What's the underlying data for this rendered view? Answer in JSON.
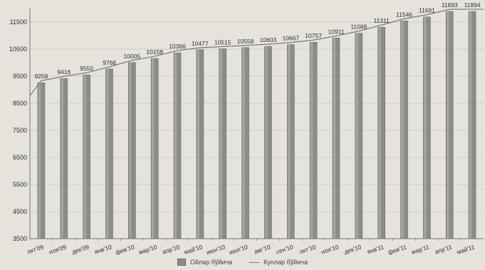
{
  "chart_data": {
    "type": "bar",
    "categories": [
      "окт'09",
      "ноя'09",
      "дек'09",
      "янв'10",
      "фев'10",
      "мар'10",
      "апр'10",
      "май'10",
      "июн'10",
      "июл'10",
      "авг'10",
      "сен'10",
      "окт'10",
      "ноя'10",
      "дек'10",
      "янв'11",
      "фев'11",
      "мар'11",
      "апр'11",
      "май'11"
    ],
    "series": [
      {
        "name": "Ойлар бўйича",
        "type": "bar",
        "values": [
          9258,
          9416,
          9550,
          9768,
          10005,
          10158,
          10366,
          10477,
          10515,
          10558,
          10603,
          10667,
          10757,
          10911,
          11088,
          11311,
          11546,
          11691,
          11893,
          11894
        ]
      },
      {
        "name": "Кунлар бўйича",
        "type": "line",
        "note_values_same_as_bars": true,
        "values": [
          9258,
          9416,
          9550,
          9768,
          10005,
          10158,
          10366,
          10477,
          10515,
          10558,
          10603,
          10667,
          10757,
          10911,
          11088,
          11311,
          11546,
          11691,
          11893,
          11894
        ]
      }
    ],
    "data_labels": [
      "9258",
      "9416",
      "9550",
      "9768",
      "10005",
      "10158",
      "10366",
      "10477",
      "10515",
      "10558",
      "10603",
      "10667",
      "10757",
      "10911",
      "11088",
      "11311",
      "11546",
      "11691",
      "11893",
      "11894"
    ],
    "yticks": [
      "3500",
      "4500",
      "5500",
      "6500",
      "7500",
      "8500",
      "9500",
      "10500",
      "11500"
    ],
    "ylim": [
      3500,
      12000
    ],
    "grid": true,
    "legend_position": "bottom",
    "colors": {
      "bar": "#8c8c8a",
      "line": "#6e6e6c",
      "grid": "#c9c6bf",
      "background": "#e6e3dc"
    }
  }
}
